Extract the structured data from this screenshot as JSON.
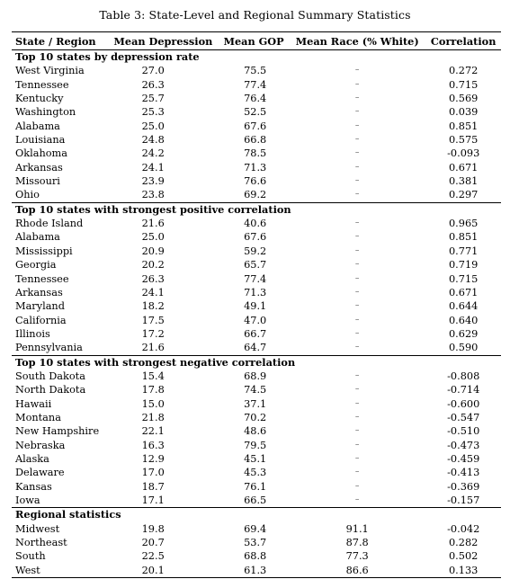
{
  "caption": "Table 3: State-Level and Regional Summary Statistics",
  "headers": [
    "State / Region",
    "Mean Depression",
    "Mean GOP",
    "Mean Race (% White)",
    "Correlation"
  ],
  "sections": [
    {
      "title": "Top 10 states by depression rate",
      "rows": [
        [
          "West Virginia",
          "27.0",
          "75.5",
          "–",
          "0.272"
        ],
        [
          "Tennessee",
          "26.3",
          "77.4",
          "–",
          "0.715"
        ],
        [
          "Kentucky",
          "25.7",
          "76.4",
          "–",
          "0.569"
        ],
        [
          "Washington",
          "25.3",
          "52.5",
          "–",
          "0.039"
        ],
        [
          "Alabama",
          "25.0",
          "67.6",
          "–",
          "0.851"
        ],
        [
          "Louisiana",
          "24.8",
          "66.8",
          "–",
          "0.575"
        ],
        [
          "Oklahoma",
          "24.2",
          "78.5",
          "–",
          "-0.093"
        ],
        [
          "Arkansas",
          "24.1",
          "71.3",
          "–",
          "0.671"
        ],
        [
          "Missouri",
          "23.9",
          "76.6",
          "–",
          "0.381"
        ],
        [
          "Ohio",
          "23.8",
          "69.2",
          "–",
          "0.297"
        ]
      ]
    },
    {
      "title": "Top 10 states with strongest positive correlation",
      "rows": [
        [
          "Rhode Island",
          "21.6",
          "40.6",
          "–",
          "0.965"
        ],
        [
          "Alabama",
          "25.0",
          "67.6",
          "–",
          "0.851"
        ],
        [
          "Mississippi",
          "20.9",
          "59.2",
          "–",
          "0.771"
        ],
        [
          "Georgia",
          "20.2",
          "65.7",
          "–",
          "0.719"
        ],
        [
          "Tennessee",
          "26.3",
          "77.4",
          "–",
          "0.715"
        ],
        [
          "Arkansas",
          "24.1",
          "71.3",
          "–",
          "0.671"
        ],
        [
          "Maryland",
          "18.2",
          "49.1",
          "–",
          "0.644"
        ],
        [
          "California",
          "17.5",
          "47.0",
          "–",
          "0.640"
        ],
        [
          "Illinois",
          "17.2",
          "66.7",
          "–",
          "0.629"
        ],
        [
          "Pennsylvania",
          "21.6",
          "64.7",
          "–",
          "0.590"
        ]
      ]
    },
    {
      "title": "Top 10 states with strongest negative correlation",
      "rows": [
        [
          "South Dakota",
          "15.4",
          "68.9",
          "–",
          "-0.808"
        ],
        [
          "North Dakota",
          "17.8",
          "74.5",
          "–",
          "-0.714"
        ],
        [
          "Hawaii",
          "15.0",
          "37.1",
          "–",
          "-0.600"
        ],
        [
          "Montana",
          "21.8",
          "70.2",
          "–",
          "-0.547"
        ],
        [
          "New Hampshire",
          "22.1",
          "48.6",
          "–",
          "-0.510"
        ],
        [
          "Nebraska",
          "16.3",
          "79.5",
          "–",
          "-0.473"
        ],
        [
          "Alaska",
          "12.9",
          "45.1",
          "–",
          "-0.459"
        ],
        [
          "Delaware",
          "17.0",
          "45.3",
          "–",
          "-0.413"
        ],
        [
          "Kansas",
          "18.7",
          "76.1",
          "–",
          "-0.369"
        ],
        [
          "Iowa",
          "17.1",
          "66.5",
          "–",
          "-0.157"
        ]
      ]
    },
    {
      "title": "Regional statistics",
      "rows": [
        [
          "Midwest",
          "19.8",
          "69.4",
          "91.1",
          "-0.042"
        ],
        [
          "Northeast",
          "20.7",
          "53.7",
          "87.8",
          "0.282"
        ],
        [
          "South",
          "22.5",
          "68.8",
          "77.3",
          "0.502"
        ],
        [
          "West",
          "20.1",
          "61.3",
          "86.6",
          "0.133"
        ]
      ]
    }
  ]
}
